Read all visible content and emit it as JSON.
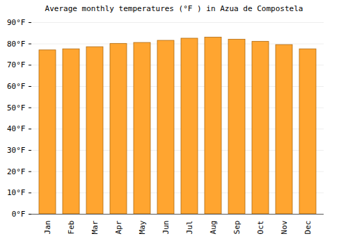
{
  "chart_data": {
    "type": "bar",
    "title": "Average monthly temperatures (°F ) in Azua de Compostela",
    "categories": [
      "Jan",
      "Feb",
      "Mar",
      "Apr",
      "May",
      "Jun",
      "Jul",
      "Aug",
      "Sep",
      "Oct",
      "Nov",
      "Dec"
    ],
    "values": [
      77,
      77.5,
      78.5,
      80,
      80.5,
      81.5,
      82.5,
      83,
      82,
      81,
      79.5,
      77.5
    ],
    "color": "#ffa530",
    "ylim": [
      0,
      90
    ],
    "yticks": [
      {
        "value": 0,
        "label": "0°F"
      },
      {
        "value": 10,
        "label": "10°F"
      },
      {
        "value": 20,
        "label": "20°F"
      },
      {
        "value": 30,
        "label": "30°F"
      },
      {
        "value": 40,
        "label": "40°F"
      },
      {
        "value": 50,
        "label": "50°F"
      },
      {
        "value": 60,
        "label": "60°F"
      },
      {
        "value": 70,
        "label": "70°F"
      },
      {
        "value": 80,
        "label": "80°F"
      },
      {
        "value": 90,
        "label": "90°F"
      }
    ],
    "grid": true
  }
}
